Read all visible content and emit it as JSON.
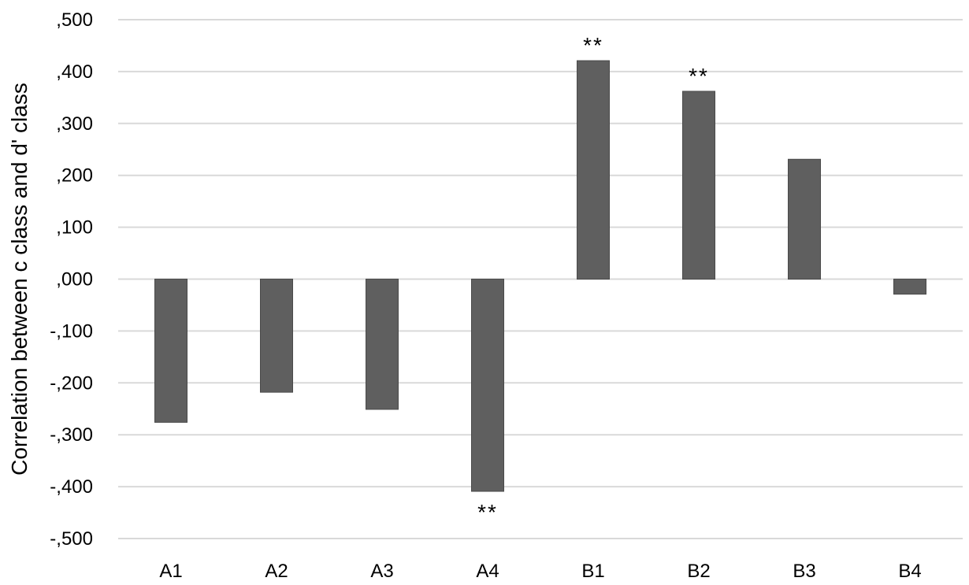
{
  "chart_data": {
    "type": "bar",
    "title": "",
    "xlabel": "",
    "ylabel": "Correlation between c class and d' class",
    "ylim": [
      -0.5,
      0.5
    ],
    "yticks": [
      0.5,
      0.4,
      0.3,
      0.2,
      0.1,
      0.0,
      -0.1,
      -0.2,
      -0.3,
      -0.4,
      -0.5
    ],
    "ytick_labels": [
      ",500",
      ",400",
      ",300",
      ",200",
      ",100",
      ",000",
      "-,100",
      "-,200",
      "-,300",
      "-,400",
      "-,500"
    ],
    "grid": "horizontal",
    "legend": "none",
    "categories": [
      "A1",
      "A2",
      "A3",
      "A4",
      "B1",
      "B2",
      "B3",
      "B4"
    ],
    "values": [
      -0.276,
      -0.218,
      -0.251,
      -0.409,
      0.421,
      0.362,
      0.231,
      -0.029
    ],
    "significance": [
      "",
      "",
      "",
      "**",
      "**",
      "**",
      "",
      ""
    ],
    "colors": {
      "bar_fill": "#5f5f5f",
      "bar_stroke": "#4a4a4a",
      "grid": "#d9d9d9",
      "text": "#000000"
    }
  }
}
